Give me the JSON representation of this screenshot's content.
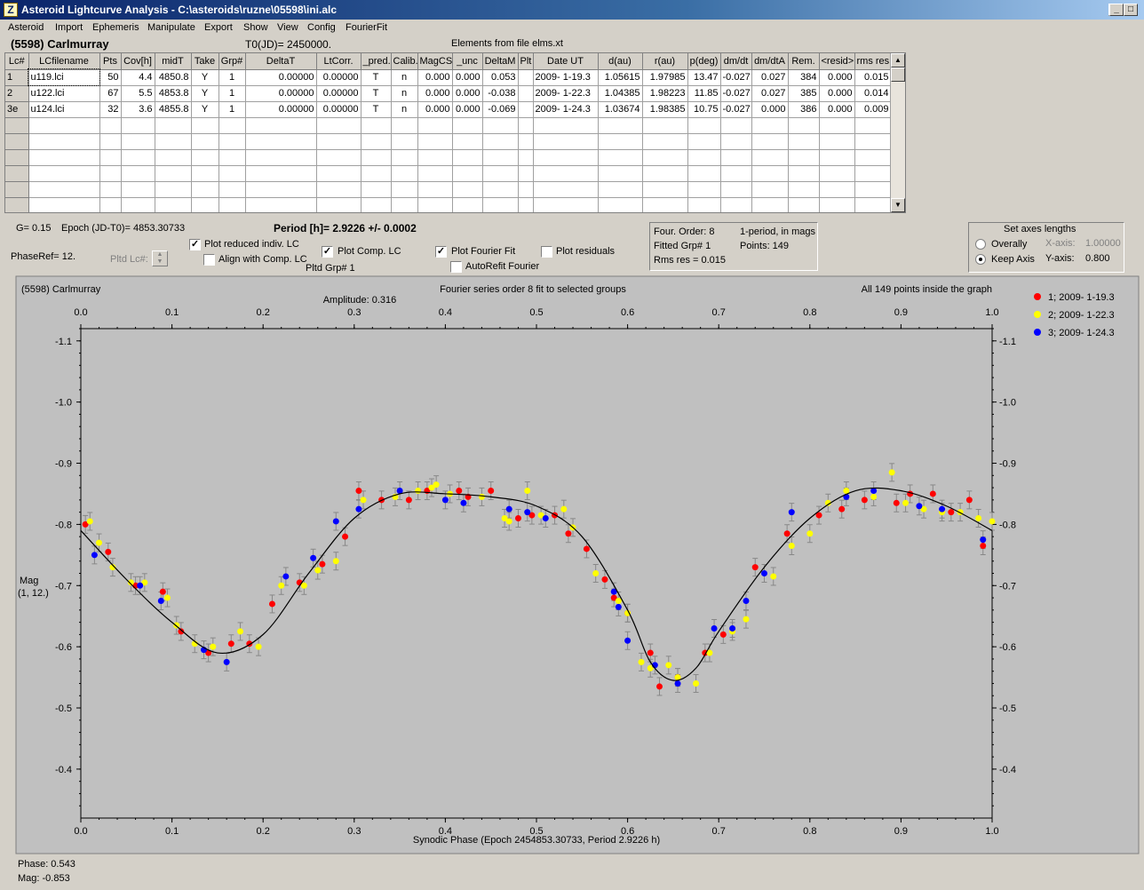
{
  "window": {
    "title": "Asteroid Lightcurve Analysis - C:\\asteroids\\ruzne\\05598\\ini.alc",
    "icon": "alc-app-icon",
    "min": "_",
    "max": "□",
    "close": "×"
  },
  "menu": [
    "Asteroid",
    "Import",
    "Ephemeris",
    "Manipulate",
    "Export",
    "Show",
    "View",
    "Config",
    "FourierFit"
  ],
  "header": {
    "asteroid": "(5598) Carlmurray",
    "t0": "T0(JD)= 2450000.",
    "elements": "Elements from file elms.xt"
  },
  "grid": {
    "columns": [
      "Lc#",
      "LCfilename",
      "Pts",
      "Cov[h]",
      "midT",
      "Take",
      "Grp#",
      "DeltaT",
      "LtCorr.",
      "_pred.",
      "Calib.",
      "MagCS",
      "_unc",
      "DeltaM",
      "Plt",
      "Date UT",
      "d(au)",
      "r(au)",
      "p(deg)",
      "dm/dt",
      "dm/dtA",
      "Rem.",
      "<resid>",
      "rms res"
    ],
    "rows": [
      [
        "1",
        "u119.lci",
        "50",
        "4.4",
        "4850.8",
        "Y",
        "1",
        "0.00000",
        "0.00000",
        "T",
        "n",
        "0.000",
        "0.000",
        "0.053",
        "",
        "2009- 1-19.3",
        "1.05615",
        "1.97985",
        "13.47",
        "-0.027",
        "0.027",
        "384",
        "0.000",
        "0.015"
      ],
      [
        "2",
        "u122.lci",
        "67",
        "5.5",
        "4853.8",
        "Y",
        "1",
        "0.00000",
        "0.00000",
        "T",
        "n",
        "0.000",
        "0.000",
        "-0.038",
        "",
        "2009- 1-22.3",
        "1.04385",
        "1.98223",
        "11.85",
        "-0.027",
        "0.027",
        "385",
        "0.000",
        "0.014"
      ],
      [
        "3e",
        "u124.lci",
        "32",
        "3.6",
        "4855.8",
        "Y",
        "1",
        "0.00000",
        "0.00000",
        "T",
        "n",
        "0.000",
        "0.000",
        "-0.069",
        "",
        "2009- 1-24.3",
        "1.03674",
        "1.98385",
        "10.75",
        "-0.027",
        "0.000",
        "386",
        "0.000",
        "0.009"
      ]
    ],
    "empty_rows": 6
  },
  "controls": {
    "g": "G= 0.15",
    "epoch": "Epoch (JD-T0)= 4853.30733",
    "period": "Period [h]= 2.9226 +/- 0.0002",
    "phaseref": "PhaseRef= 12.",
    "pltd_lc": "Pltd Lc#:",
    "pltd_grp": "Pltd Grp#  1",
    "cb_plot_reduced": {
      "label": "Plot reduced indiv. LC",
      "checked": true
    },
    "cb_align": {
      "label": "Align with Comp. LC",
      "checked": false
    },
    "cb_plot_comp": {
      "label": "Plot Comp. LC",
      "checked": true
    },
    "cb_plot_fourier": {
      "label": "Plot Fourier Fit",
      "checked": true
    },
    "cb_autorefit": {
      "label": "AutoRefit Fourier",
      "checked": false
    },
    "cb_residuals": {
      "label": "Plot residuals",
      "checked": false
    }
  },
  "fourier_info": {
    "order": "Four. Order:  8",
    "fitted": "Fitted Grp# 1",
    "rms": "Rms res      = 0.015",
    "period_type": "1-period, in mags",
    "points": "Points: 149"
  },
  "axes_box": {
    "title": "Set axes lengths",
    "overally": "Overally",
    "keep_axis": "Keep Axis",
    "selected": "Keep Axis",
    "xaxis_label": "X-axis:",
    "xaxis_value": "1.00000",
    "yaxis_label": "Y-axis:",
    "yaxis_value": "0.800"
  },
  "status": {
    "phase": "Phase:  0.543",
    "mag": "Mag:    -0.853"
  },
  "chart_data": {
    "type": "scatter",
    "title": "(5598) Carlmurray",
    "subtitle": "Fourier series order 8 fit to selected groups",
    "amplitude": "Amplitude: 0.316",
    "note": "All 149 points inside the graph",
    "xlabel": "Synodic Phase (Epoch 2454853.30733, Period 2.9226 h)",
    "ylabel": "Mag",
    "ylabel2": "(1, 12.)",
    "xlim": [
      0,
      1
    ],
    "ylim": [
      -1.12,
      -0.32
    ],
    "y_inverted": true,
    "xticks": [
      "0.0",
      "0.1",
      "0.2",
      "0.3",
      "0.4",
      "0.5",
      "0.6",
      "0.7",
      "0.8",
      "0.9",
      "1.0"
    ],
    "yticks": [
      -1.1,
      -1.0,
      -0.9,
      -0.8,
      -0.7,
      -0.6,
      -0.5,
      -0.4
    ],
    "ytick_labels": [
      "-1.1",
      "-1.0",
      "-0.9",
      "-0.8",
      "-0.7",
      "-0.6",
      "-0.5",
      "-0.4"
    ],
    "legend_position": "right",
    "background": "#c0c0c0",
    "series": [
      {
        "name": "1; 2009- 1-19.3",
        "color": "#ff0000",
        "x": [
          0.005,
          0.03,
          0.06,
          0.09,
          0.11,
          0.14,
          0.165,
          0.185,
          0.21,
          0.24,
          0.265,
          0.29,
          0.305,
          0.33,
          0.36,
          0.38,
          0.415,
          0.425,
          0.45,
          0.48,
          0.495,
          0.52,
          0.535,
          0.555,
          0.575,
          0.585,
          0.6,
          0.625,
          0.635,
          0.655,
          0.685,
          0.705,
          0.74,
          0.775,
          0.81,
          0.835,
          0.86,
          0.895,
          0.91,
          0.935,
          0.955,
          0.975,
          0.99
        ],
        "y": [
          -0.8,
          -0.755,
          -0.7,
          -0.69,
          -0.625,
          -0.59,
          -0.605,
          -0.605,
          -0.67,
          -0.705,
          -0.735,
          -0.78,
          -0.855,
          -0.84,
          -0.84,
          -0.855,
          -0.855,
          -0.845,
          -0.855,
          -0.81,
          -0.815,
          -0.815,
          -0.785,
          -0.76,
          -0.71,
          -0.68,
          -0.655,
          -0.59,
          -0.535,
          -0.55,
          -0.59,
          -0.62,
          -0.73,
          -0.785,
          -0.815,
          -0.825,
          -0.84,
          -0.835,
          -0.85,
          -0.85,
          -0.82,
          -0.84,
          -0.765
        ]
      },
      {
        "name": "2; 2009- 1-22.3",
        "color": "#ffff00",
        "x": [
          0.01,
          0.02,
          0.035,
          0.055,
          0.07,
          0.095,
          0.105,
          0.125,
          0.145,
          0.175,
          0.195,
          0.22,
          0.245,
          0.26,
          0.28,
          0.31,
          0.345,
          0.37,
          0.385,
          0.39,
          0.405,
          0.44,
          0.465,
          0.47,
          0.49,
          0.505,
          0.53,
          0.54,
          0.565,
          0.59,
          0.6,
          0.615,
          0.625,
          0.645,
          0.655,
          0.675,
          0.69,
          0.715,
          0.73,
          0.76,
          0.78,
          0.8,
          0.82,
          0.84,
          0.87,
          0.89,
          0.905,
          0.925,
          0.945,
          0.965,
          0.985,
          1.0
        ],
        "y": [
          -0.805,
          -0.77,
          -0.73,
          -0.705,
          -0.705,
          -0.68,
          -0.635,
          -0.605,
          -0.6,
          -0.625,
          -0.6,
          -0.7,
          -0.7,
          -0.725,
          -0.74,
          -0.84,
          -0.845,
          -0.855,
          -0.86,
          -0.865,
          -0.85,
          -0.845,
          -0.81,
          -0.805,
          -0.855,
          -0.815,
          -0.825,
          -0.795,
          -0.72,
          -0.675,
          -0.655,
          -0.575,
          -0.565,
          -0.57,
          -0.55,
          -0.54,
          -0.59,
          -0.625,
          -0.645,
          -0.715,
          -0.765,
          -0.785,
          -0.835,
          -0.855,
          -0.845,
          -0.885,
          -0.835,
          -0.825,
          -0.82,
          -0.82,
          -0.81,
          -0.805
        ]
      },
      {
        "name": "3; 2009- 1-24.3",
        "color": "#0000ff",
        "x": [
          0.015,
          0.065,
          0.088,
          0.135,
          0.16,
          0.225,
          0.255,
          0.28,
          0.305,
          0.35,
          0.4,
          0.42,
          0.47,
          0.49,
          0.51,
          0.585,
          0.59,
          0.6,
          0.63,
          0.655,
          0.695,
          0.715,
          0.73,
          0.75,
          0.78,
          0.84,
          0.87,
          0.92,
          0.945,
          0.99
        ],
        "y": [
          -0.75,
          -0.7,
          -0.675,
          -0.595,
          -0.575,
          -0.715,
          -0.745,
          -0.805,
          -0.825,
          -0.855,
          -0.84,
          -0.835,
          -0.825,
          -0.82,
          -0.81,
          -0.69,
          -0.665,
          -0.61,
          -0.57,
          -0.54,
          -0.63,
          -0.63,
          -0.675,
          -0.72,
          -0.82,
          -0.845,
          -0.855,
          -0.83,
          -0.825,
          -0.775
        ]
      }
    ],
    "fit_curve": {
      "x": [
        0.0,
        0.05,
        0.1,
        0.15,
        0.2,
        0.25,
        0.3,
        0.35,
        0.4,
        0.45,
        0.5,
        0.55,
        0.6,
        0.625,
        0.65,
        0.675,
        0.7,
        0.75,
        0.8,
        0.85,
        0.9,
        0.95,
        1.0
      ],
      "y": [
        -0.79,
        -0.71,
        -0.64,
        -0.59,
        -0.62,
        -0.72,
        -0.81,
        -0.85,
        -0.85,
        -0.845,
        -0.83,
        -0.78,
        -0.66,
        -0.575,
        -0.545,
        -0.565,
        -0.625,
        -0.73,
        -0.81,
        -0.855,
        -0.855,
        -0.83,
        -0.79
      ]
    }
  }
}
